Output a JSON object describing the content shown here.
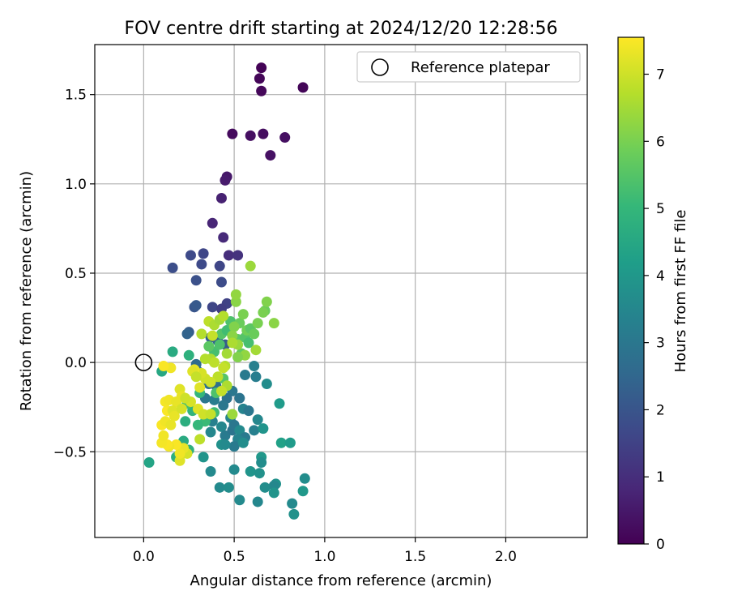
{
  "chart_data": {
    "type": "scatter",
    "title": "FOV centre drift starting at 2024/12/20 12:28:56",
    "xlabel": "Angular distance from reference (arcmin)",
    "ylabel": "Rotation from reference (arcmin)",
    "xlim": [
      -0.27,
      2.45
    ],
    "ylim": [
      -0.98,
      1.78
    ],
    "x_ticks": [
      0.0,
      0.5,
      1.0,
      1.5,
      2.0
    ],
    "x_tick_labels": [
      "0.0",
      "0.5",
      "1.0",
      "1.5",
      "2.0"
    ],
    "y_ticks": [
      -0.5,
      0.0,
      0.5,
      1.0,
      1.5
    ],
    "y_tick_labels": [
      "−0.5",
      "0.0",
      "0.5",
      "1.0",
      "1.5"
    ],
    "grid": true,
    "legend": {
      "placement": "top-right",
      "entries": [
        "Reference platepar"
      ]
    },
    "reference_point": {
      "x": 0.0,
      "y": 0.0,
      "label": "Reference platepar"
    },
    "colorbar": {
      "label": "Hours from first FF file",
      "min": 0,
      "max": 7.55,
      "ticks": [
        0,
        1,
        2,
        3,
        4,
        5,
        6,
        7
      ],
      "colormap": "viridis",
      "colors": [
        "#440154",
        "#482878",
        "#3e4989",
        "#31688e",
        "#26828e",
        "#1f9e89",
        "#35b779",
        "#6ece58",
        "#b5de2b",
        "#fde725"
      ]
    },
    "points": [
      [
        0.65,
        1.65,
        0.05
      ],
      [
        0.64,
        1.59,
        0.1
      ],
      [
        0.65,
        1.52,
        0.15
      ],
      [
        0.88,
        1.54,
        0.1
      ],
      [
        0.49,
        1.28,
        0.2
      ],
      [
        0.59,
        1.27,
        0.3
      ],
      [
        0.66,
        1.28,
        0.25
      ],
      [
        0.78,
        1.26,
        0.3
      ],
      [
        0.7,
        1.16,
        0.35
      ],
      [
        0.46,
        1.04,
        0.5
      ],
      [
        0.45,
        1.02,
        0.55
      ],
      [
        0.43,
        0.92,
        0.7
      ],
      [
        0.38,
        0.78,
        0.8
      ],
      [
        0.44,
        0.7,
        0.9
      ],
      [
        0.47,
        0.6,
        1.0
      ],
      [
        0.52,
        0.6,
        1.1
      ],
      [
        0.26,
        0.6,
        1.7
      ],
      [
        0.33,
        0.61,
        1.6
      ],
      [
        0.16,
        0.53,
        1.8
      ],
      [
        0.32,
        0.55,
        1.7
      ],
      [
        0.42,
        0.54,
        1.6
      ],
      [
        0.29,
        0.46,
        1.9
      ],
      [
        0.43,
        0.45,
        1.75
      ],
      [
        0.46,
        0.33,
        1.5
      ],
      [
        0.38,
        0.31,
        1.6
      ],
      [
        0.28,
        0.31,
        2.0
      ],
      [
        0.29,
        0.32,
        2.1
      ],
      [
        0.43,
        0.3,
        1.4
      ],
      [
        0.25,
        0.17,
        2.2
      ],
      [
        0.24,
        0.16,
        2.4
      ],
      [
        0.37,
        0.14,
        2.3
      ],
      [
        0.41,
        0.12,
        2.5
      ],
      [
        0.45,
        0.1,
        2.2
      ],
      [
        0.29,
        -0.01,
        2.6
      ],
      [
        0.3,
        -0.05,
        2.5
      ],
      [
        0.36,
        -0.12,
        2.8
      ],
      [
        0.4,
        -0.13,
        2.7
      ],
      [
        0.49,
        -0.16,
        3.0
      ],
      [
        0.53,
        -0.2,
        2.9
      ],
      [
        0.56,
        -0.07,
        3.1
      ],
      [
        0.61,
        -0.02,
        3.3
      ],
      [
        0.62,
        -0.08,
        3.2
      ],
      [
        0.55,
        -0.26,
        3.4
      ],
      [
        0.58,
        -0.27,
        3.0
      ],
      [
        0.46,
        -0.2,
        2.8
      ],
      [
        0.44,
        -0.24,
        3.0
      ],
      [
        0.39,
        -0.21,
        3.2
      ],
      [
        0.34,
        -0.2,
        3.0
      ],
      [
        0.38,
        -0.33,
        3.3
      ],
      [
        0.48,
        -0.31,
        3.4
      ],
      [
        0.43,
        -0.36,
        3.5
      ],
      [
        0.45,
        -0.41,
        3.1
      ],
      [
        0.49,
        -0.38,
        2.9
      ],
      [
        0.5,
        -0.35,
        3.0
      ],
      [
        0.53,
        -0.38,
        3.6
      ],
      [
        0.56,
        -0.42,
        3.1
      ],
      [
        0.61,
        -0.38,
        3.3
      ],
      [
        0.63,
        -0.32,
        3.5
      ],
      [
        0.66,
        -0.37,
        3.9
      ],
      [
        0.68,
        -0.12,
        3.7
      ],
      [
        0.75,
        -0.23,
        4.1
      ],
      [
        0.76,
        -0.45,
        4.3
      ],
      [
        0.81,
        -0.45,
        4.1
      ],
      [
        0.52,
        -0.43,
        3.4
      ],
      [
        0.5,
        -0.47,
        3.1
      ],
      [
        0.55,
        -0.45,
        3.7
      ],
      [
        0.43,
        -0.46,
        3.8
      ],
      [
        0.45,
        -0.46,
        3.6
      ],
      [
        0.37,
        -0.39,
        3.5
      ],
      [
        0.33,
        -0.53,
        3.9
      ],
      [
        0.37,
        -0.61,
        3.6
      ],
      [
        0.5,
        -0.6,
        3.6
      ],
      [
        0.59,
        -0.61,
        3.9
      ],
      [
        0.64,
        -0.62,
        3.8
      ],
      [
        0.65,
        -0.53,
        4.0
      ],
      [
        0.65,
        -0.56,
        3.7
      ],
      [
        0.73,
        -0.68,
        3.8
      ],
      [
        0.72,
        -0.69,
        3.5
      ],
      [
        0.67,
        -0.7,
        3.7
      ],
      [
        0.72,
        -0.73,
        3.9
      ],
      [
        0.88,
        -0.72,
        4.0
      ],
      [
        0.89,
        -0.65,
        3.7
      ],
      [
        0.82,
        -0.79,
        3.6
      ],
      [
        0.83,
        -0.85,
        3.8
      ],
      [
        0.63,
        -0.78,
        3.5
      ],
      [
        0.53,
        -0.77,
        3.6
      ],
      [
        0.42,
        -0.7,
        3.6
      ],
      [
        0.47,
        -0.7,
        3.7
      ],
      [
        0.03,
        -0.56,
        4.4
      ],
      [
        0.1,
        -0.05,
        4.5
      ],
      [
        0.16,
        0.06,
        4.6
      ],
      [
        0.23,
        -0.33,
        4.7
      ],
      [
        0.25,
        0.04,
        4.8
      ],
      [
        0.22,
        -0.44,
        4.6
      ],
      [
        0.18,
        -0.53,
        4.7
      ],
      [
        0.25,
        -0.49,
        4.8
      ],
      [
        0.27,
        -0.27,
        4.9
      ],
      [
        0.31,
        -0.17,
        5.0
      ],
      [
        0.34,
        -0.33,
        5.1
      ],
      [
        0.39,
        -0.28,
        5.2
      ],
      [
        0.3,
        -0.35,
        5.0
      ],
      [
        0.24,
        -0.23,
        5.3
      ],
      [
        0.4,
        -0.17,
        5.4
      ],
      [
        0.44,
        -0.09,
        5.5
      ],
      [
        0.39,
        0.06,
        5.3
      ],
      [
        0.36,
        0.09,
        5.6
      ],
      [
        0.42,
        0.1,
        5.4
      ],
      [
        0.43,
        0.16,
        5.5
      ],
      [
        0.46,
        0.18,
        5.2
      ],
      [
        0.48,
        0.23,
        5.4
      ],
      [
        0.52,
        0.13,
        5.6
      ],
      [
        0.54,
        0.05,
        5.7
      ],
      [
        0.56,
        0.14,
        5.5
      ],
      [
        0.58,
        0.11,
        5.3
      ],
      [
        0.53,
        0.22,
        5.8
      ],
      [
        0.57,
        0.18,
        5.9
      ],
      [
        0.59,
        0.19,
        5.6
      ],
      [
        0.61,
        0.16,
        5.8
      ],
      [
        0.63,
        0.22,
        6.0
      ],
      [
        0.67,
        0.29,
        5.8
      ],
      [
        0.66,
        0.28,
        6.0
      ],
      [
        0.68,
        0.34,
        6.1
      ],
      [
        0.72,
        0.22,
        6.2
      ],
      [
        0.55,
        0.27,
        6.0
      ],
      [
        0.51,
        0.34,
        6.2
      ],
      [
        0.51,
        0.38,
        6.3
      ],
      [
        0.59,
        0.54,
        6.4
      ],
      [
        0.5,
        0.2,
        6.1
      ],
      [
        0.49,
        0.15,
        6.2
      ],
      [
        0.52,
        0.1,
        6.4
      ],
      [
        0.56,
        0.04,
        6.3
      ],
      [
        0.52,
        0.03,
        6.1
      ],
      [
        0.62,
        0.07,
        6.5
      ],
      [
        0.49,
        0.11,
        6.6
      ],
      [
        0.46,
        0.05,
        6.5
      ],
      [
        0.45,
        -0.02,
        6.7
      ],
      [
        0.37,
        0.02,
        6.6
      ],
      [
        0.39,
        0.0,
        6.8
      ],
      [
        0.34,
        0.02,
        6.7
      ],
      [
        0.32,
        0.16,
        6.7
      ],
      [
        0.36,
        0.23,
        6.8
      ],
      [
        0.39,
        0.21,
        6.6
      ],
      [
        0.42,
        0.24,
        6.5
      ],
      [
        0.44,
        0.26,
        6.7
      ],
      [
        0.38,
        0.15,
        6.9
      ],
      [
        0.41,
        -0.08,
        6.8
      ],
      [
        0.46,
        -0.13,
        6.6
      ],
      [
        0.43,
        -0.16,
        6.9
      ],
      [
        0.37,
        -0.11,
        7.0
      ],
      [
        0.34,
        -0.09,
        7.0
      ],
      [
        0.32,
        -0.06,
        7.1
      ],
      [
        0.31,
        -0.14,
        7.2
      ],
      [
        0.28,
        -0.04,
        7.3
      ],
      [
        0.26,
        -0.22,
        7.1
      ],
      [
        0.3,
        -0.26,
        7.2
      ],
      [
        0.33,
        -0.29,
        7.0
      ],
      [
        0.37,
        -0.29,
        6.9
      ],
      [
        0.31,
        -0.43,
        6.8
      ],
      [
        0.49,
        -0.29,
        6.4
      ],
      [
        0.44,
        -0.03,
        6.9
      ],
      [
        0.24,
        -0.51,
        7.1
      ],
      [
        0.22,
        -0.48,
        7.3
      ],
      [
        0.2,
        -0.55,
        7.2
      ],
      [
        0.2,
        -0.51,
        7.4
      ],
      [
        0.18,
        -0.46,
        7.5
      ],
      [
        0.14,
        -0.47,
        7.4
      ],
      [
        0.13,
        -0.46,
        7.5
      ],
      [
        0.1,
        -0.45,
        7.45
      ],
      [
        0.11,
        -0.41,
        7.4
      ],
      [
        0.1,
        -0.35,
        7.5
      ],
      [
        0.12,
        -0.33,
        7.4
      ],
      [
        0.15,
        -0.35,
        7.3
      ],
      [
        0.13,
        -0.27,
        7.5
      ],
      [
        0.12,
        -0.22,
        7.45
      ],
      [
        0.14,
        -0.21,
        7.4
      ],
      [
        0.18,
        -0.22,
        7.3
      ],
      [
        0.16,
        -0.27,
        7.2
      ],
      [
        0.17,
        -0.3,
        7.3
      ],
      [
        0.2,
        -0.15,
        7.2
      ],
      [
        0.21,
        -0.19,
        7.3
      ],
      [
        0.23,
        -0.2,
        7.0
      ],
      [
        0.27,
        -0.05,
        7.2
      ],
      [
        0.29,
        -0.08,
        6.9
      ],
      [
        0.21,
        -0.26,
        7.1
      ],
      [
        0.15,
        -0.03,
        7.4
      ],
      [
        0.11,
        -0.02,
        7.5
      ]
    ]
  }
}
